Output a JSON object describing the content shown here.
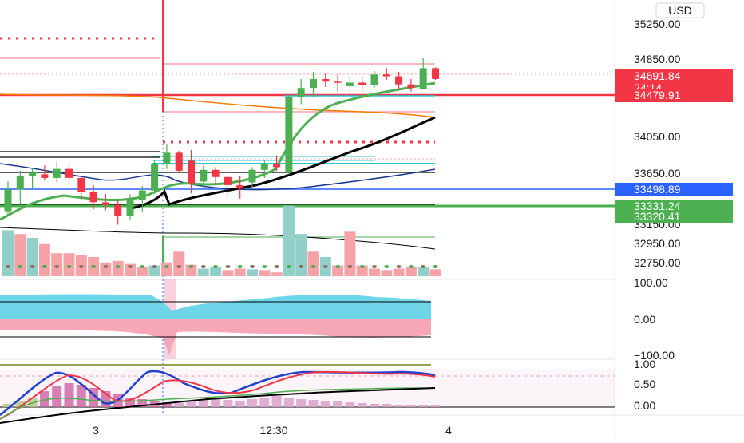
{
  "currency": "USD",
  "colors": {
    "up": "#4caf50",
    "down": "#f23645",
    "vol_up": "#92cfc9",
    "vol_down": "#f5a3a6",
    "ma_green": "#4caf50",
    "ma_black": "#000000",
    "ma_orange": "#f57c00",
    "ma_navy": "#1a3a8f",
    "teal": "#26c6da",
    "blue_line": "#2962ff",
    "osc_cyan": "#6fd6ea",
    "osc_pink": "#f7a8b8",
    "stoch_blue": "#2040d0",
    "stoch_red": "#f23645",
    "olive": "#a0a050"
  },
  "price_axis": {
    "ticks": [
      "35250.00",
      "34850.00",
      "34050.00",
      "33650.00",
      "33150.00",
      "32950.00",
      "32750.00"
    ],
    "tags": [
      {
        "label": "34691.84",
        "sub": "24:14",
        "color": "#f23645"
      },
      {
        "label": "34479.91",
        "color": "#f23645"
      },
      {
        "label": "33498.89",
        "color": "#2962ff"
      },
      {
        "label": "33331.24",
        "color": "#4caf50"
      },
      {
        "label": "33320.41",
        "color": "#4caf50"
      }
    ]
  },
  "osc_axis": {
    "ticks": [
      "100.00",
      "0.00",
      "−100.00"
    ]
  },
  "stoch_axis": {
    "ticks": [
      "1.00",
      "0.50",
      "0.00"
    ]
  },
  "time_axis": {
    "ticks": [
      "3",
      "12:30",
      "4"
    ]
  },
  "chart_data": {
    "type": "candlestick",
    "ylim": [
      32650,
      35400
    ],
    "candles": [
      {
        "o": 33230,
        "h": 33560,
        "l": 33180,
        "c": 33470
      },
      {
        "o": 33470,
        "h": 33680,
        "l": 33280,
        "c": 33620
      },
      {
        "o": 33620,
        "h": 33710,
        "l": 33480,
        "c": 33660
      },
      {
        "o": 33640,
        "h": 33740,
        "l": 33570,
        "c": 33600
      },
      {
        "o": 33600,
        "h": 33780,
        "l": 33550,
        "c": 33700
      },
      {
        "o": 33700,
        "h": 33770,
        "l": 33540,
        "c": 33600
      },
      {
        "o": 33600,
        "h": 33630,
        "l": 33350,
        "c": 33440
      },
      {
        "o": 33440,
        "h": 33520,
        "l": 33250,
        "c": 33330
      },
      {
        "o": 33330,
        "h": 33420,
        "l": 33240,
        "c": 33300
      },
      {
        "o": 33300,
        "h": 33360,
        "l": 33080,
        "c": 33180
      },
      {
        "o": 33180,
        "h": 33420,
        "l": 33140,
        "c": 33360
      },
      {
        "o": 33360,
        "h": 33510,
        "l": 33220,
        "c": 33460
      },
      {
        "o": 33460,
        "h": 33800,
        "l": 33420,
        "c": 33760
      },
      {
        "o": 33760,
        "h": 33970,
        "l": 33700,
        "c": 33880
      },
      {
        "o": 33880,
        "h": 33900,
        "l": 33660,
        "c": 33680
      },
      {
        "o": 33790,
        "h": 33910,
        "l": 33430,
        "c": 33540
      },
      {
        "o": 33560,
        "h": 33740,
        "l": 33490,
        "c": 33690
      },
      {
        "o": 33690,
        "h": 33720,
        "l": 33540,
        "c": 33610
      },
      {
        "o": 33610,
        "h": 33630,
        "l": 33380,
        "c": 33520
      },
      {
        "o": 33520,
        "h": 33620,
        "l": 33370,
        "c": 33480
      },
      {
        "o": 33550,
        "h": 33720,
        "l": 33500,
        "c": 33690
      },
      {
        "o": 33690,
        "h": 33790,
        "l": 33600,
        "c": 33760
      },
      {
        "o": 33760,
        "h": 33850,
        "l": 33680,
        "c": 33720
      },
      {
        "o": 33660,
        "h": 34520,
        "l": 33640,
        "c": 34500
      },
      {
        "o": 34500,
        "h": 34700,
        "l": 34420,
        "c": 34600
      },
      {
        "o": 34600,
        "h": 34780,
        "l": 34500,
        "c": 34700
      },
      {
        "o": 34700,
        "h": 34760,
        "l": 34610,
        "c": 34670
      },
      {
        "o": 34670,
        "h": 34750,
        "l": 34560,
        "c": 34660
      },
      {
        "o": 34620,
        "h": 34740,
        "l": 34530,
        "c": 34660
      },
      {
        "o": 34660,
        "h": 34720,
        "l": 34580,
        "c": 34630
      },
      {
        "o": 34630,
        "h": 34790,
        "l": 34600,
        "c": 34750
      },
      {
        "o": 34750,
        "h": 34820,
        "l": 34690,
        "c": 34730
      },
      {
        "o": 34730,
        "h": 34780,
        "l": 34580,
        "c": 34640
      },
      {
        "o": 34640,
        "h": 34700,
        "l": 34560,
        "c": 34600
      },
      {
        "o": 34590,
        "h": 34930,
        "l": 34580,
        "c": 34820
      },
      {
        "o": 34820,
        "h": 34830,
        "l": 34690,
        "c": 34700
      }
    ],
    "volume_up": [
      true,
      false,
      true,
      false,
      false,
      false,
      false,
      false,
      false,
      false,
      false,
      false,
      true,
      false,
      false,
      false,
      true,
      true,
      false,
      false,
      true,
      false,
      false,
      true,
      true,
      false,
      true,
      false,
      false,
      false,
      false,
      false,
      false,
      false,
      true,
      false
    ],
    "volume": [
      60,
      55,
      50,
      42,
      30,
      30,
      28,
      25,
      18,
      20,
      16,
      12,
      14,
      18,
      32,
      15,
      10,
      12,
      8,
      10,
      9,
      8,
      5,
      92,
      55,
      32,
      25,
      14,
      58,
      14,
      10,
      8,
      10,
      12,
      12,
      9
    ]
  }
}
